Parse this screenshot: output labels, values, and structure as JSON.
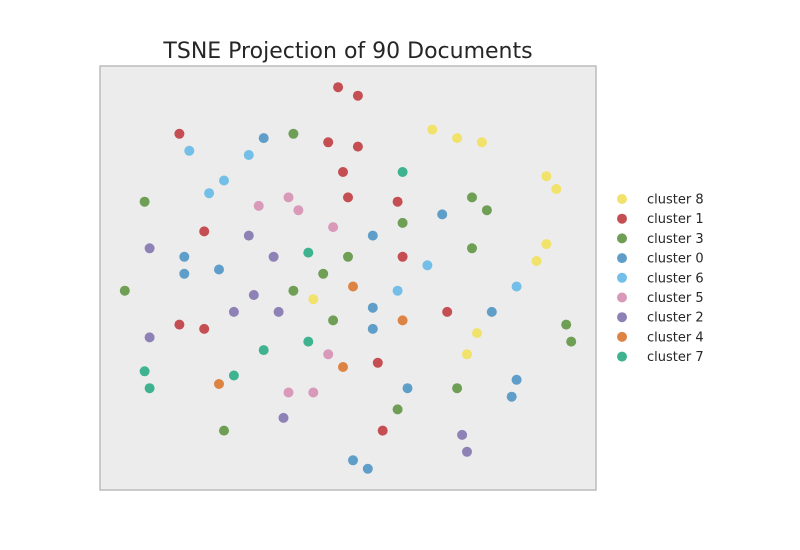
{
  "chart_data": {
    "type": "scatter",
    "title": "TSNE Projection of 90 Documents",
    "xlabel": "",
    "ylabel": "",
    "xlim": [
      0,
      100
    ],
    "ylim": [
      0,
      100
    ],
    "grid": false,
    "legend_position": "right",
    "series": [
      {
        "name": "cluster 8",
        "color": "#f0e26b",
        "points": [
          [
            67,
            85
          ],
          [
            72,
            83
          ],
          [
            77,
            82
          ],
          [
            90,
            74
          ],
          [
            92,
            71
          ],
          [
            90,
            58
          ],
          [
            88,
            54
          ],
          [
            43,
            45
          ],
          [
            76,
            37
          ],
          [
            74,
            32
          ]
        ]
      },
      {
        "name": "cluster 1",
        "color": "#c44e52",
        "points": [
          [
            48,
            95
          ],
          [
            52,
            93
          ],
          [
            16,
            84
          ],
          [
            46,
            82
          ],
          [
            52,
            81
          ],
          [
            49,
            75
          ],
          [
            50,
            69
          ],
          [
            60,
            68
          ],
          [
            21,
            61
          ],
          [
            61,
            55
          ],
          [
            70,
            42
          ],
          [
            16,
            39
          ],
          [
            21,
            38
          ],
          [
            56,
            30
          ],
          [
            57,
            14
          ]
        ]
      },
      {
        "name": "cluster 3",
        "color": "#6f9e55",
        "points": [
          [
            39,
            84
          ],
          [
            9,
            68
          ],
          [
            75,
            69
          ],
          [
            78,
            66
          ],
          [
            61,
            63
          ],
          [
            75,
            57
          ],
          [
            50,
            55
          ],
          [
            45,
            51
          ],
          [
            39,
            47
          ],
          [
            5,
            47
          ],
          [
            47,
            40
          ],
          [
            94,
            39
          ],
          [
            95,
            35
          ],
          [
            72,
            24
          ],
          [
            60,
            19
          ],
          [
            25,
            14
          ]
        ]
      },
      {
        "name": "cluster 0",
        "color": "#5f9ec8",
        "points": [
          [
            33,
            83
          ],
          [
            69,
            65
          ],
          [
            55,
            60
          ],
          [
            17,
            55
          ],
          [
            24,
            52
          ],
          [
            17,
            51
          ],
          [
            55,
            43
          ],
          [
            79,
            42
          ],
          [
            55,
            38
          ],
          [
            62,
            24
          ],
          [
            84,
            26
          ],
          [
            83,
            22
          ],
          [
            51,
            7
          ],
          [
            54,
            5
          ]
        ]
      },
      {
        "name": "cluster 6",
        "color": "#73bfe8",
        "points": [
          [
            18,
            80
          ],
          [
            30,
            79
          ],
          [
            25,
            73
          ],
          [
            22,
            70
          ],
          [
            66,
            53
          ],
          [
            60,
            47
          ],
          [
            84,
            48
          ]
        ]
      },
      {
        "name": "cluster 5",
        "color": "#d89ab8",
        "points": [
          [
            38,
            69
          ],
          [
            32,
            67
          ],
          [
            40,
            66
          ],
          [
            47,
            62
          ],
          [
            46,
            32
          ],
          [
            38,
            23
          ],
          [
            43,
            23
          ]
        ]
      },
      {
        "name": "cluster 2",
        "color": "#8e81b5",
        "points": [
          [
            10,
            57
          ],
          [
            30,
            60
          ],
          [
            35,
            55
          ],
          [
            31,
            46
          ],
          [
            27,
            42
          ],
          [
            36,
            42
          ],
          [
            10,
            36
          ],
          [
            37,
            17
          ],
          [
            73,
            13
          ],
          [
            74,
            9
          ]
        ]
      },
      {
        "name": "cluster 4",
        "color": "#dd8445",
        "points": [
          [
            51,
            48
          ],
          [
            61,
            40
          ],
          [
            49,
            29
          ],
          [
            24,
            25
          ]
        ]
      },
      {
        "name": "cluster 7",
        "color": "#3fb38f",
        "points": [
          [
            61,
            75
          ],
          [
            42,
            56
          ],
          [
            42,
            35
          ],
          [
            33,
            33
          ],
          [
            9,
            28
          ],
          [
            27,
            27
          ],
          [
            10,
            24
          ]
        ]
      }
    ],
    "legend_order": [
      "cluster 8",
      "cluster 1",
      "cluster 3",
      "cluster 0",
      "cluster 6",
      "cluster 5",
      "cluster 2",
      "cluster 4",
      "cluster 7"
    ]
  },
  "colors": {
    "plot_background": "#ececec",
    "plot_border": "#bcbcbc",
    "title_text": "#262626"
  }
}
